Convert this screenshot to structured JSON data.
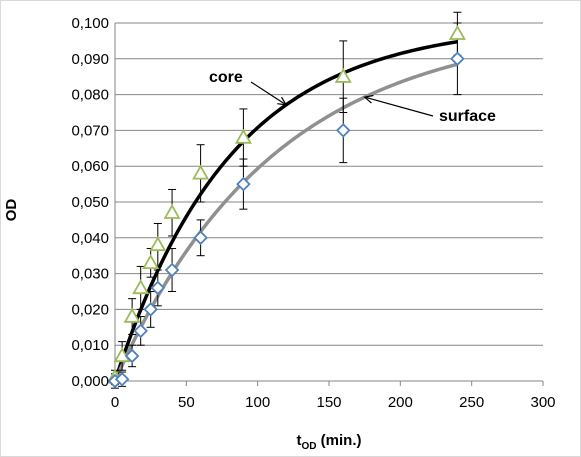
{
  "chart_data": {
    "type": "scatter",
    "xlabel": "t",
    "xlabel_subscript": "OD",
    "xlabel_suffix": " (min.)",
    "ylabel": "OD",
    "xlim": [
      0,
      300
    ],
    "ylim": [
      0,
      0.1
    ],
    "x_ticks": [
      "0",
      "50",
      "100",
      "150",
      "200",
      "250",
      "300"
    ],
    "y_ticks": [
      "0,000",
      "0,010",
      "0,020",
      "0,030",
      "0,040",
      "0,050",
      "0,060",
      "0,070",
      "0,080",
      "0,090",
      "0,100"
    ],
    "grid": true,
    "series": [
      {
        "name": "core",
        "marker": "triangle",
        "color": "#9bbb59",
        "points": [
          {
            "x": 0,
            "y": 0.001,
            "err": 0.002
          },
          {
            "x": 5,
            "y": 0.007,
            "err": 0.004
          },
          {
            "x": 12,
            "y": 0.018,
            "err": 0.005
          },
          {
            "x": 18,
            "y": 0.026,
            "err": 0.006
          },
          {
            "x": 25,
            "y": 0.033,
            "err": 0.004
          },
          {
            "x": 30,
            "y": 0.038,
            "err": 0.006
          },
          {
            "x": 40,
            "y": 0.047,
            "err": 0.0065
          },
          {
            "x": 60,
            "y": 0.058,
            "err": 0.008
          },
          {
            "x": 90,
            "y": 0.068,
            "err": 0.008
          },
          {
            "x": 160,
            "y": 0.085,
            "err": 0.01
          },
          {
            "x": 240,
            "y": 0.097,
            "err": 0.006
          }
        ]
      },
      {
        "name": "surface",
        "marker": "diamond",
        "color": "#4f81bd",
        "points": [
          {
            "x": 0,
            "y": 0.0,
            "err": 0.002
          },
          {
            "x": 5,
            "y": 0.0005,
            "err": 0.002
          },
          {
            "x": 12,
            "y": 0.007,
            "err": 0.003
          },
          {
            "x": 18,
            "y": 0.014,
            "err": 0.004
          },
          {
            "x": 25,
            "y": 0.02,
            "err": 0.005
          },
          {
            "x": 30,
            "y": 0.026,
            "err": 0.005
          },
          {
            "x": 40,
            "y": 0.031,
            "err": 0.006
          },
          {
            "x": 60,
            "y": 0.04,
            "err": 0.005
          },
          {
            "x": 90,
            "y": 0.055,
            "err": 0.007
          },
          {
            "x": 160,
            "y": 0.07,
            "err": 0.009
          },
          {
            "x": 240,
            "y": 0.09,
            "err": 0.01
          }
        ]
      }
    ],
    "fit_curves": [
      {
        "series": "core",
        "color": "#000000",
        "ymax": 0.1,
        "k": 0.0123
      },
      {
        "series": "surface",
        "color": "#909090",
        "ymax": 0.1,
        "k": 0.009
      }
    ],
    "annotations": [
      {
        "text": "core",
        "series": "core"
      },
      {
        "text": "surface",
        "series": "surface"
      }
    ]
  }
}
